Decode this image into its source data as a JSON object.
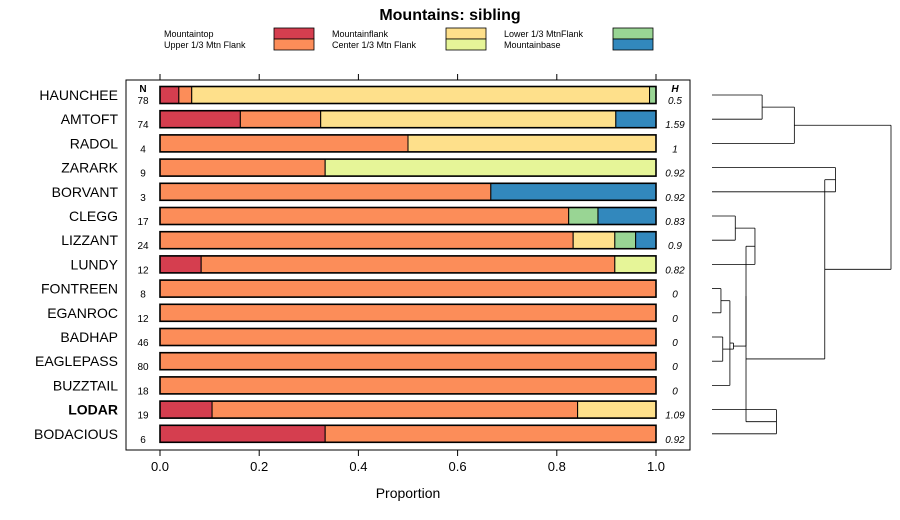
{
  "chart_data": {
    "type": "bar",
    "stacked": true,
    "orientation": "horizontal",
    "title": "Mountains: sibling",
    "xlabel": "Proportion",
    "xlim": [
      0,
      1
    ],
    "xticks": [
      "0.0",
      "0.2",
      "0.4",
      "0.6",
      "0.8",
      "1.0"
    ],
    "n_header": "N",
    "h_header": "H",
    "legend_position": "top",
    "series": [
      {
        "name": "Mountaintop",
        "color": "#D53E4F"
      },
      {
        "name": "Upper 1/3 Mtn Flank",
        "color": "#FC8D59"
      },
      {
        "name": "Mountainflank",
        "color": "#FEE08B"
      },
      {
        "name": "Center 1/3 Mtn Flank",
        "color": "#E6F598"
      },
      {
        "name": "Lower 1/3 MtnFlank",
        "color": "#99D594"
      },
      {
        "name": "Mountainbase",
        "color": "#3288BD"
      }
    ],
    "rows": [
      {
        "label": "HAUNCHEE",
        "bold": false,
        "n": "78",
        "h": "0.5",
        "values": [
          0.038,
          0.026,
          0.923,
          0,
          0.013,
          0
        ]
      },
      {
        "label": "AMTOFT",
        "bold": false,
        "n": "74",
        "h": "1.59",
        "values": [
          0.162,
          0.162,
          0.595,
          0,
          0,
          0.081
        ]
      },
      {
        "label": "RADOL",
        "bold": false,
        "n": "4",
        "h": "1",
        "values": [
          0,
          0.5,
          0.5,
          0,
          0,
          0
        ]
      },
      {
        "label": "ZARARK",
        "bold": false,
        "n": "9",
        "h": "0.92",
        "values": [
          0,
          0.333,
          0,
          0.667,
          0,
          0
        ]
      },
      {
        "label": "BORVANT",
        "bold": false,
        "n": "3",
        "h": "0.92",
        "values": [
          0,
          0.667,
          0,
          0,
          0,
          0.333
        ]
      },
      {
        "label": "CLEGG",
        "bold": false,
        "n": "17",
        "h": "0.83",
        "values": [
          0,
          0.824,
          0,
          0,
          0.059,
          0.117
        ]
      },
      {
        "label": "LIZZANT",
        "bold": false,
        "n": "24",
        "h": "0.9",
        "values": [
          0,
          0.833,
          0.084,
          0,
          0.042,
          0.041
        ]
      },
      {
        "label": "LUNDY",
        "bold": false,
        "n": "12",
        "h": "0.82",
        "values": [
          0.083,
          0.834,
          0,
          0.083,
          0,
          0
        ]
      },
      {
        "label": "FONTREEN",
        "bold": false,
        "n": "8",
        "h": "0",
        "values": [
          0,
          1,
          0,
          0,
          0,
          0
        ]
      },
      {
        "label": "EGANROC",
        "bold": false,
        "n": "12",
        "h": "0",
        "values": [
          0,
          1,
          0,
          0,
          0,
          0
        ]
      },
      {
        "label": "BADHAP",
        "bold": false,
        "n": "46",
        "h": "0",
        "values": [
          0,
          1,
          0,
          0,
          0,
          0
        ]
      },
      {
        "label": "EAGLEPASS",
        "bold": false,
        "n": "80",
        "h": "0",
        "values": [
          0,
          1,
          0,
          0,
          0,
          0
        ]
      },
      {
        "label": "BUZZTAIL",
        "bold": false,
        "n": "18",
        "h": "0",
        "values": [
          0,
          1,
          0,
          0,
          0,
          0
        ]
      },
      {
        "label": "LODAR",
        "bold": true,
        "n": "19",
        "h": "1.09",
        "values": [
          0.105,
          0.737,
          0.158,
          0,
          0,
          0
        ]
      },
      {
        "label": "BODACIOUS",
        "bold": false,
        "n": "6",
        "h": "0.92",
        "values": [
          0.333,
          0.667,
          0,
          0,
          0,
          0
        ]
      }
    ],
    "dendrogram": {
      "leaf_order": [
        "HAUNCHEE",
        "AMTOFT",
        "RADOL",
        "ZARARK",
        "BORVANT",
        "CLEGG",
        "LIZZANT",
        "LUNDY",
        "FONTREEN",
        "EGANROC",
        "BADHAP",
        "EAGLEPASS",
        "BUZZTAIL",
        "LODAR",
        "BODACIOUS"
      ],
      "merges": [
        [
          0,
          1,
          0.28
        ],
        [
          -1,
          2,
          0.46
        ],
        [
          3,
          4,
          0.69
        ],
        [
          5,
          6,
          0.13
        ],
        [
          -4,
          7,
          0.24
        ],
        [
          8,
          9,
          0.05
        ],
        [
          10,
          11,
          0.06
        ],
        [
          -6,
          12,
          0.1
        ],
        [
          -7,
          -8,
          0.12
        ],
        [
          -5,
          -9,
          0.19
        ],
        [
          13,
          14,
          0.36
        ],
        [
          -10,
          -11,
          0.19
        ],
        [
          -3,
          -12,
          0.63
        ],
        [
          -2,
          -13,
          1.0
        ]
      ]
    }
  }
}
